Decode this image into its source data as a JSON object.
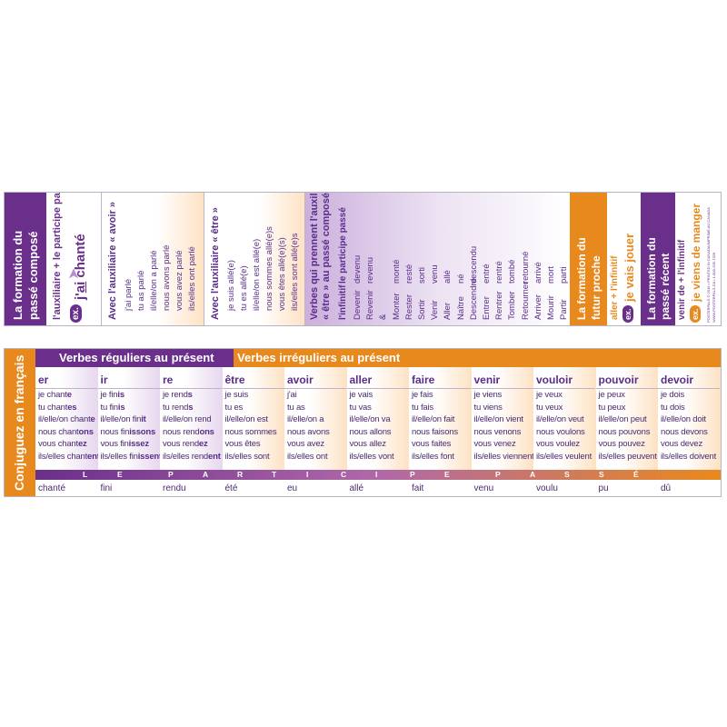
{
  "top_card": {
    "pc_title_1": "La formation du",
    "pc_title_2": "passé composé",
    "pc_formula": "l'auxiliaire + le participe passé",
    "pc_ex_badge": "ex.",
    "pc_example_pre": "j'",
    "pc_example_aux": "ai",
    "pc_example_rest": " chanté",
    "avoir_heading": "Avec l'auxiliaire « avoir »",
    "avoir_forms": [
      "j'ai parlé",
      "tu as parlé",
      "il/elle/on a parlé",
      "nous avons parlé",
      "vous avez parlé",
      "ils/elles ont parlé"
    ],
    "etre_heading": "Avec l'auxiliaire « être »",
    "etre_forms": [
      "je suis allé(e)",
      "tu es allé(e)",
      "il/elle/on est allé(e)",
      "nous sommes allé(e)s",
      "vous êtes allé(e)(s)",
      "ils/elles sont allé(e)s"
    ],
    "etre_verbs_heading_1": "Verbes qui prennent l'auxiliaire",
    "etre_verbs_heading_2": "« être » au passé composé",
    "col_infinitif": "l'infinitif",
    "col_participe": "le participe passé",
    "etre_verbs": [
      [
        "Devenir",
        "devenu"
      ],
      [
        "Revenir",
        "revenu"
      ],
      [
        "&",
        ""
      ],
      [
        "Monter",
        "monté"
      ],
      [
        "Rester",
        "resté"
      ],
      [
        "Sortir",
        "sorti"
      ],
      [
        "Venir",
        "venu"
      ],
      [
        "Aller",
        "allé"
      ],
      [
        "Naître",
        "né"
      ],
      [
        "Descendre",
        "descendu"
      ],
      [
        "Entrer",
        "entré"
      ],
      [
        "Rentrer",
        "rentré"
      ],
      [
        "Tomber",
        "tombé"
      ],
      [
        "Retourner",
        "retourné"
      ],
      [
        "Arriver",
        "arrivé"
      ],
      [
        "Mourir",
        "mort"
      ],
      [
        "Partir",
        "parti"
      ]
    ],
    "fp_title_1": "La formation du",
    "fp_title_2": "futur proche",
    "fp_formula": "aller + l'infinitif",
    "fp_ex_badge": "ex.",
    "fp_example": "je vais jouer",
    "pr_title_1": "La formation du",
    "pr_title_2": "passé récent",
    "pr_formula": "venir de + l'infinitif",
    "pr_ex_badge": "ex.",
    "pr_example": "je viens de manger",
    "credits_1": "POSTERPALS © 2016 • PRINTED IN CANADA/IMPRIMÉ AU CANADA",
    "credits_2": "WWW.POSTERPALS.CA • 1-800-205-7326"
  },
  "bottom_card": {
    "side_title": "Conjuguez en français",
    "regular_header": "Verbes réguliers au présent",
    "irregular_header": "Verbes irréguliers au présent",
    "participe_letters": [
      "L",
      "E",
      "P",
      "A",
      "R",
      "T",
      "I",
      "C",
      "I",
      "P",
      "E",
      "P",
      "A",
      "S",
      "S",
      "É"
    ],
    "verbs": [
      {
        "name": "er",
        "forms": [
          [
            "je chant",
            "e"
          ],
          [
            "tu chant",
            "es"
          ],
          [
            "il/elle/on chant",
            "e"
          ],
          [
            "nous chant",
            "ons"
          ],
          [
            "vous chant",
            "ez"
          ],
          [
            "ils/elles chant",
            "ent"
          ]
        ],
        "pp": "chanté"
      },
      {
        "name": "ir",
        "forms": [
          [
            "je fin",
            "is"
          ],
          [
            "tu fin",
            "is"
          ],
          [
            "il/elle/on fin",
            "it"
          ],
          [
            "nous fin",
            "issons"
          ],
          [
            "vous fin",
            "issez"
          ],
          [
            "ils/elles fin",
            "issent"
          ]
        ],
        "pp": "fini"
      },
      {
        "name": "re",
        "forms": [
          [
            "je rend",
            "s"
          ],
          [
            "tu rend",
            "s"
          ],
          [
            "il/elle/on rend",
            ""
          ],
          [
            "nous rend",
            "ons"
          ],
          [
            "vous rend",
            "ez"
          ],
          [
            "ils/elles rend",
            "ent"
          ]
        ],
        "pp": "rendu"
      },
      {
        "name": "être",
        "forms": [
          [
            "je suis",
            ""
          ],
          [
            "tu es",
            ""
          ],
          [
            "il/elle/on est",
            ""
          ],
          [
            "nous sommes",
            ""
          ],
          [
            "vous êtes",
            ""
          ],
          [
            "ils/elles sont",
            ""
          ]
        ],
        "pp": "été"
      },
      {
        "name": "avoir",
        "forms": [
          [
            "j'ai",
            ""
          ],
          [
            "tu as",
            ""
          ],
          [
            "il/elle/on a",
            ""
          ],
          [
            "nous avons",
            ""
          ],
          [
            "vous avez",
            ""
          ],
          [
            "ils/elles ont",
            ""
          ]
        ],
        "pp": "eu"
      },
      {
        "name": "aller",
        "forms": [
          [
            "je vais",
            ""
          ],
          [
            "tu vas",
            ""
          ],
          [
            "il/elle/on va",
            ""
          ],
          [
            "nous allons",
            ""
          ],
          [
            "vous allez",
            ""
          ],
          [
            "ils/elles vont",
            ""
          ]
        ],
        "pp": "allé"
      },
      {
        "name": "faire",
        "forms": [
          [
            "je fais",
            ""
          ],
          [
            "tu fais",
            ""
          ],
          [
            "il/elle/on fait",
            ""
          ],
          [
            "nous faisons",
            ""
          ],
          [
            "vous faites",
            ""
          ],
          [
            "ils/elles font",
            ""
          ]
        ],
        "pp": "fait"
      },
      {
        "name": "venir",
        "forms": [
          [
            "je viens",
            ""
          ],
          [
            "tu viens",
            ""
          ],
          [
            "il/elle/on vient",
            ""
          ],
          [
            "nous venons",
            ""
          ],
          [
            "vous venez",
            ""
          ],
          [
            "ils/elles viennent",
            ""
          ]
        ],
        "pp": "venu"
      },
      {
        "name": "vouloir",
        "forms": [
          [
            "je veux",
            ""
          ],
          [
            "tu veux",
            ""
          ],
          [
            "il/elle/on veut",
            ""
          ],
          [
            "nous voulons",
            ""
          ],
          [
            "vous voulez",
            ""
          ],
          [
            "ils/elles veulent",
            ""
          ]
        ],
        "pp": "voulu"
      },
      {
        "name": "pouvoir",
        "forms": [
          [
            "je peux",
            ""
          ],
          [
            "tu peux",
            ""
          ],
          [
            "il/elle/on peut",
            ""
          ],
          [
            "nous pouvons",
            ""
          ],
          [
            "vous pouvez",
            ""
          ],
          [
            "ils/elles peuvent",
            ""
          ]
        ],
        "pp": "pu"
      },
      {
        "name": "devoir",
        "forms": [
          [
            "je dois",
            ""
          ],
          [
            "tu dois",
            ""
          ],
          [
            "il/elle/on doit",
            ""
          ],
          [
            "nous devons",
            ""
          ],
          [
            "vous devez",
            ""
          ],
          [
            "ils/elles doivent",
            ""
          ]
        ],
        "pp": "dû"
      }
    ]
  },
  "colors": {
    "purple": "#6a2f8a",
    "orange": "#e8891e",
    "text": "#4b2a6e"
  }
}
